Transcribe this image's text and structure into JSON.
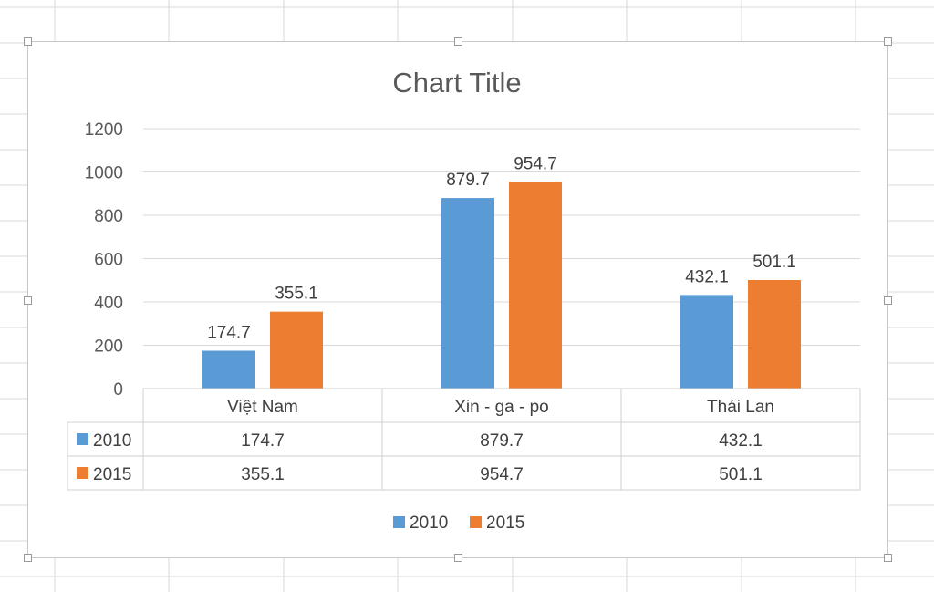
{
  "colors": {
    "series_2010": "#5b9bd5",
    "series_2015": "#ed7d31",
    "gridline": "#d9d9d9",
    "table_border": "#d0d0d0",
    "sheet_grid": "#dadada"
  },
  "chart_data": {
    "type": "bar",
    "title": "Chart Title",
    "categories": [
      "Việt Nam",
      "Xin - ga - po",
      "Thái Lan"
    ],
    "series": [
      {
        "name": "2010",
        "values": [
          174.7,
          879.7,
          432.1
        ],
        "color": "#5b9bd5"
      },
      {
        "name": "2015",
        "values": [
          355.1,
          954.7,
          501.1
        ],
        "color": "#ed7d31"
      }
    ],
    "data_labels": [
      [
        "174.7",
        "879.7",
        "432.1"
      ],
      [
        "355.1",
        "954.7",
        "501.1"
      ]
    ],
    "ylim": [
      0,
      1200
    ],
    "yticks": [
      0,
      200,
      400,
      600,
      800,
      1000,
      1200
    ],
    "grid": true,
    "data_table": true,
    "legend": "bottom"
  }
}
